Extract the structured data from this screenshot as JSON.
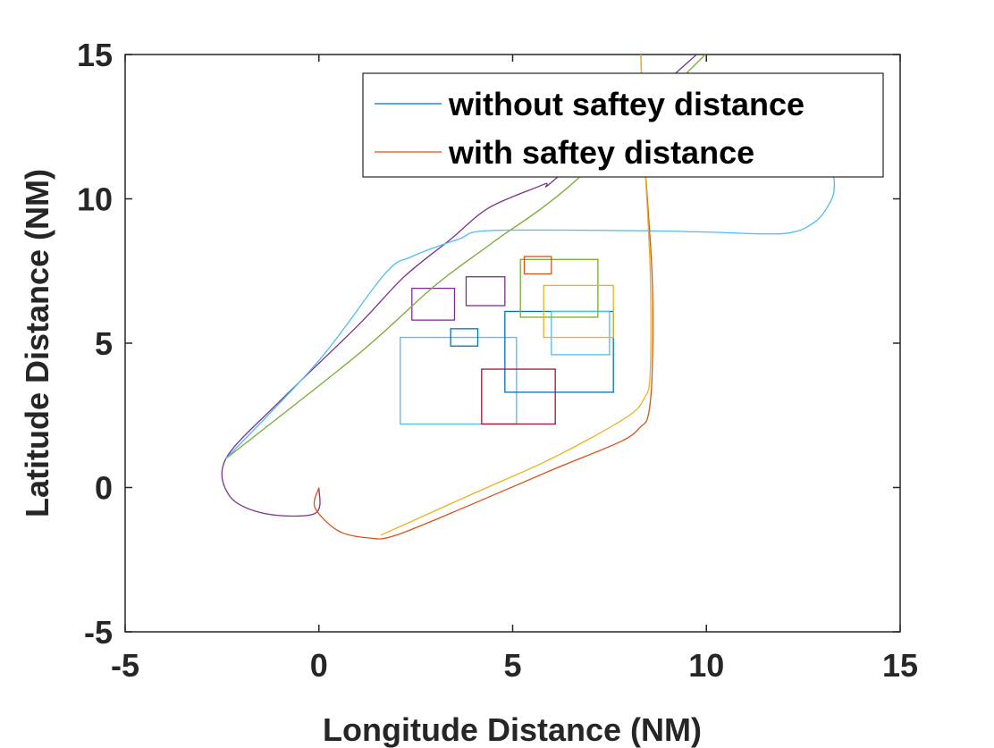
{
  "chart_data": {
    "type": "line",
    "title": "",
    "xlabel": "Longitude Distance (NM)",
    "ylabel": "Latitude Distance (NM)",
    "xlim": [
      -5,
      15
    ],
    "ylim": [
      -5,
      15
    ],
    "xticks": [
      -5,
      0,
      5,
      10,
      15
    ],
    "yticks": [
      -5,
      0,
      5,
      10,
      15
    ],
    "xtick_labels": [
      "-5",
      "0",
      "5",
      "10",
      "15"
    ],
    "ytick_labels": [
      "-5",
      "0",
      "5",
      "10",
      "15"
    ],
    "grid": false,
    "legend_position": "top-right",
    "legend": [
      {
        "label": "without saftey distance",
        "color": "#0072BD"
      },
      {
        "label": "with saftey distance",
        "color": "#D95319"
      }
    ],
    "series": [
      {
        "color": "#7E2F8E",
        "points": [
          [
            0,
            0
          ],
          [
            -0.1,
            -0.9
          ],
          [
            -1.4,
            -0.9
          ],
          [
            -2.3,
            -0.3
          ],
          [
            -2.4,
            1.0
          ],
          [
            -1.0,
            3.0
          ],
          [
            1.0,
            5.6
          ],
          [
            2.2,
            7.3
          ],
          [
            3.4,
            8.6
          ],
          [
            4.4,
            9.7
          ],
          [
            5.8,
            10.5
          ],
          [
            6.2,
            10.8
          ],
          [
            10.0,
            15.3
          ]
        ]
      },
      {
        "color": "#77AC30",
        "points": [
          [
            -2.4,
            1.0
          ],
          [
            1.0,
            4.6
          ],
          [
            3.0,
            7.0
          ],
          [
            4.5,
            8.5
          ],
          [
            6.6,
            10.6
          ],
          [
            10.2,
            15.3
          ]
        ]
      },
      {
        "color": "#4DBEEE",
        "points": [
          [
            -2.4,
            1.0
          ],
          [
            0.0,
            4.4
          ],
          [
            1.7,
            7.4
          ],
          [
            2.4,
            8.0
          ],
          [
            3.6,
            8.6
          ],
          [
            4.4,
            8.9
          ],
          [
            8.0,
            8.9
          ],
          [
            10.0,
            8.85
          ],
          [
            12.0,
            8.8
          ],
          [
            12.8,
            9.2
          ],
          [
            13.2,
            9.9
          ],
          [
            13.3,
            10.4
          ],
          [
            13.2,
            10.9
          ],
          [
            12.5,
            11.3
          ],
          [
            10.0,
            11.6
          ],
          [
            8.0,
            11.7
          ]
        ]
      },
      {
        "color": "#D95319",
        "points": [
          [
            0,
            0
          ],
          [
            -0.1,
            -0.7
          ],
          [
            0.5,
            -1.5
          ],
          [
            1.3,
            -1.75
          ],
          [
            2.0,
            -1.65
          ],
          [
            4.0,
            -0.55
          ],
          [
            6.0,
            0.6
          ],
          [
            7.8,
            1.6
          ],
          [
            8.3,
            2.1
          ],
          [
            8.5,
            2.5
          ],
          [
            8.6,
            4.0
          ],
          [
            8.6,
            7.3
          ],
          [
            8.4,
            11.6
          ],
          [
            8.3,
            15.3
          ]
        ]
      },
      {
        "color": "#EDB120",
        "points": [
          [
            1.6,
            -1.65
          ],
          [
            4.0,
            -0.2
          ],
          [
            6.0,
            1.0
          ],
          [
            7.9,
            2.4
          ],
          [
            8.4,
            3.1
          ],
          [
            8.55,
            4.0
          ],
          [
            8.55,
            7.5
          ],
          [
            8.4,
            11.6
          ],
          [
            8.3,
            15.3
          ]
        ]
      }
    ],
    "rectangles": [
      {
        "color": "#4DBEEE",
        "x": [
          2.1,
          5.1
        ],
        "y": [
          2.2,
          5.2
        ]
      },
      {
        "color": "#0072BD",
        "x": [
          4.8,
          7.6
        ],
        "y": [
          3.3,
          6.1
        ]
      },
      {
        "color": "#0072BD",
        "x": [
          3.4,
          4.1
        ],
        "y": [
          4.9,
          5.5
        ]
      },
      {
        "color": "#7E2F8E",
        "x": [
          2.4,
          3.5
        ],
        "y": [
          5.8,
          6.9
        ]
      },
      {
        "color": "#7E2F8E",
        "x": [
          3.8,
          4.8
        ],
        "y": [
          6.3,
          7.3
        ]
      },
      {
        "color": "#A2142F",
        "x": [
          4.2,
          6.1
        ],
        "y": [
          2.2,
          4.1
        ]
      },
      {
        "color": "#4DBEEE",
        "x": [
          6.0,
          7.5
        ],
        "y": [
          4.6,
          6.1
        ]
      },
      {
        "color": "#77AC30",
        "x": [
          5.2,
          7.2
        ],
        "y": [
          5.9,
          7.9
        ]
      },
      {
        "color": "#EDB120",
        "x": [
          5.8,
          7.6
        ],
        "y": [
          5.2,
          7.0
        ]
      },
      {
        "color": "#D95319",
        "x": [
          5.3,
          6.0
        ],
        "y": [
          7.4,
          8.0
        ]
      }
    ]
  }
}
